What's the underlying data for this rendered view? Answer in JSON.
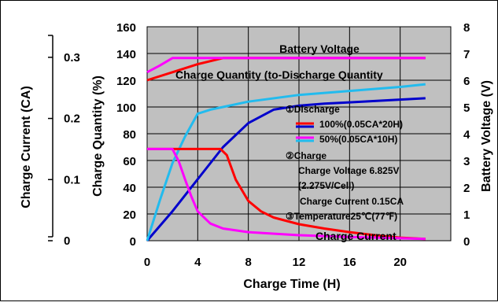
{
  "chart_data": {
    "type": "line",
    "xlabel": "Charge Time (H)",
    "x_ticks": [
      "0",
      "4",
      "8",
      "12",
      "16",
      "20"
    ],
    "xlim": [
      0,
      24
    ],
    "axes": {
      "charge_current": {
        "label": "Charge Current (CA)",
        "ticks": [
          "0",
          "0.1",
          "0.2",
          "0.3"
        ],
        "range": [
          0,
          0.35
        ]
      },
      "charge_quantity": {
        "label": "Charge Quantity (%)",
        "ticks": [
          "0",
          "20",
          "40",
          "60",
          "80",
          "100",
          "120",
          "140",
          "160"
        ],
        "range": [
          0,
          160
        ]
      },
      "battery_voltage": {
        "label": "Battery Voltage (V)",
        "ticks": [
          "0",
          "1",
          "2",
          "3",
          "4",
          "5",
          "6",
          "7",
          "8"
        ],
        "range": [
          0,
          8
        ]
      }
    },
    "grid": true,
    "annotations": {
      "battery_voltage": "Battery Voltage",
      "charge_quantity": "Charge Quantity (to-Discharge Quantity",
      "charge_current": "Charge Current",
      "discharge_header": "①Discharge",
      "legend_red": "100%(0.05CA*20H)",
      "legend_magenta": "50%(0.05CA*10H)",
      "charge_header": "②Charge",
      "charge_voltage": "Charge Voltage 6.825V",
      "cell_voltage": "(2.275V/Cell)",
      "charge_current_value": "Charge Current 0.15CA",
      "temperature": "③Temperature25℃(77℉)"
    },
    "series": [
      {
        "group": "battery_voltage",
        "discharge": "100%",
        "color": "#ff0000",
        "x": [
          0,
          2,
          4,
          6,
          8,
          12,
          16,
          20,
          22
        ],
        "y": [
          6.0,
          6.3,
          6.6,
          6.83,
          6.83,
          6.83,
          6.83,
          6.83,
          6.83
        ]
      },
      {
        "group": "battery_voltage",
        "discharge": "50%",
        "color": "#ff00ff",
        "x": [
          0,
          1,
          2,
          4,
          8,
          12,
          16,
          20,
          22
        ],
        "y": [
          6.3,
          6.55,
          6.83,
          6.83,
          6.83,
          6.83,
          6.83,
          6.83,
          6.83
        ]
      },
      {
        "group": "charge_quantity",
        "discharge": "100%",
        "color": "#0000cc",
        "x": [
          0,
          2,
          4,
          6,
          8,
          10,
          12,
          14,
          16,
          18,
          20,
          22
        ],
        "y": [
          0,
          22,
          46,
          70,
          88,
          98,
          101,
          102.5,
          103.5,
          104.5,
          105.5,
          106.5
        ]
      },
      {
        "group": "charge_quantity",
        "discharge": "50%",
        "color": "#22bbee",
        "x": [
          0,
          1,
          2,
          3,
          4,
          5,
          6,
          8,
          12,
          16,
          20,
          22
        ],
        "y": [
          0,
          30,
          58,
          78,
          95,
          98,
          100,
          104,
          109,
          112,
          115,
          117
        ]
      },
      {
        "group": "charge_current",
        "discharge": "100%",
        "color": "#ff0000",
        "x": [
          0,
          4,
          5.8,
          6.3,
          7,
          8,
          9,
          10,
          12,
          14,
          16,
          18,
          20,
          22
        ],
        "y": [
          0.15,
          0.15,
          0.15,
          0.14,
          0.1,
          0.065,
          0.048,
          0.038,
          0.027,
          0.02,
          0.014,
          0.009,
          0.005,
          0.003
        ]
      },
      {
        "group": "charge_current",
        "discharge": "50%",
        "color": "#ff00ff",
        "x": [
          0,
          2,
          2.5,
          3,
          3.5,
          4,
          5,
          6,
          8,
          12,
          16,
          20,
          22
        ],
        "y": [
          0.15,
          0.15,
          0.13,
          0.1,
          0.072,
          0.048,
          0.028,
          0.02,
          0.014,
          0.009,
          0.006,
          0.004,
          0.003
        ]
      }
    ]
  }
}
